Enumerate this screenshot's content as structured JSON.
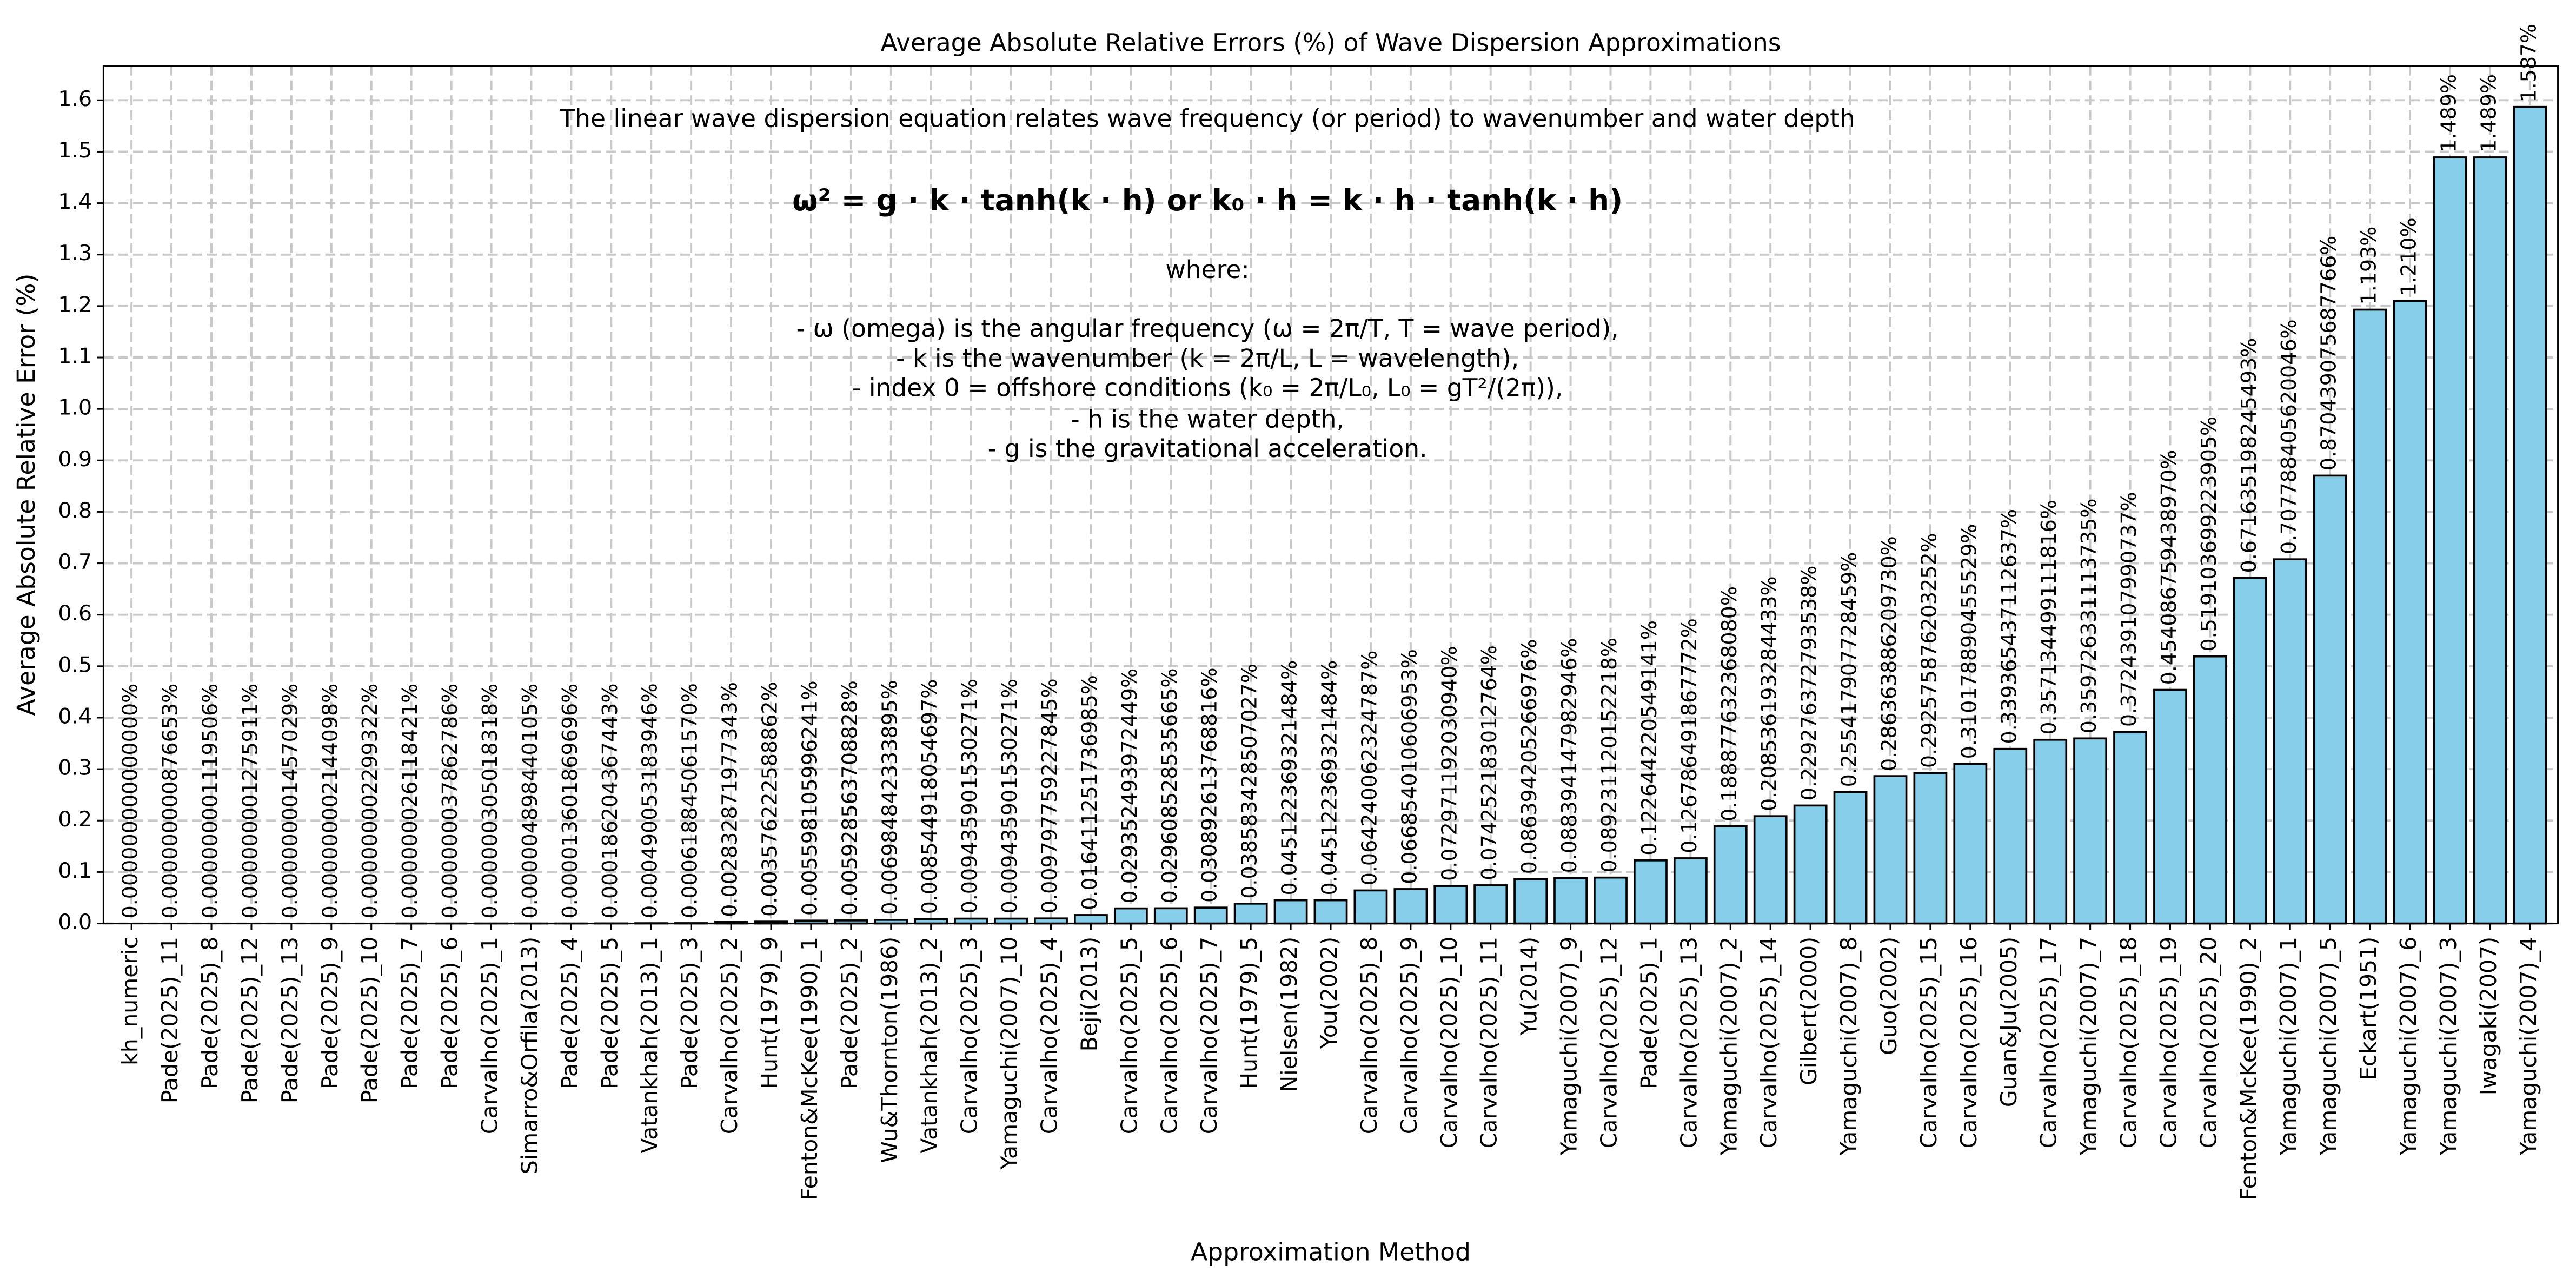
{
  "chart_data": {
    "type": "bar",
    "title": "Average Absolute Relative Errors (%) of Wave Dispersion Approximations",
    "xlabel": "Approximation Method",
    "ylabel": "Average Absolute Relative Error (%)",
    "annotations": [
      "The linear wave dispersion equation relates wave frequency (or period) to wavenumber and water depth",
      "ω² = g · k · tanh(k · h)   or   k₀ · h = k · h · tanh(k · h)",
      "where:",
      "- ω (omega) is the angular frequency (ω = 2π/T, T = wave period),",
      "- k is the wavenumber (k = 2π/L, L = wavelength),",
      "- index 0 = offshore conditions (k₀ = 2π/L₀, L₀ = gT²/(2π)),",
      "- h is the water depth,",
      "- g is the gravitational acceleration."
    ],
    "categories": [
      "kh_numeric",
      "Pade(2025)_11",
      "Pade(2025)_8",
      "Pade(2025)_12",
      "Pade(2025)_13",
      "Pade(2025)_9",
      "Pade(2025)_10",
      "Pade(2025)_7",
      "Pade(2025)_6",
      "Carvalho(2025)_1",
      "Simarro&Orfila(2013)",
      "Pade(2025)_4",
      "Pade(2025)_5",
      "Vatankhah(2013)_1",
      "Pade(2025)_3",
      "Carvalho(2025)_2",
      "Hunt(1979)_9",
      "Fenton&McKee(1990)_1",
      "Pade(2025)_2",
      "Wu&Thornton(1986)",
      "Vatankhah(2013)_2",
      "Carvalho(2025)_3",
      "Yamaguchi(2007)_10",
      "Carvalho(2025)_4",
      "Beji(2013)",
      "Carvalho(2025)_5",
      "Carvalho(2025)_6",
      "Carvalho(2025)_7",
      "Hunt(1979)_5",
      "Nielsen(1982)",
      "You(2002)",
      "Carvalho(2025)_8",
      "Carvalho(2025)_9",
      "Carvalho(2025)_10",
      "Carvalho(2025)_11",
      "Yu(2014)",
      "Yamaguchi(2007)_9",
      "Carvalho(2025)_12",
      "Pade(2025)_1",
      "Carvalho(2025)_13",
      "Yamaguchi(2007)_2",
      "Carvalho(2025)_14",
      "Gilbert(2000)",
      "Yamaguchi(2007)_8",
      "Guo(2002)",
      "Carvalho(2025)_15",
      "Carvalho(2025)_16",
      "Guan&Ju(2005)",
      "Carvalho(2025)_17",
      "Yamaguchi(2007)_7",
      "Carvalho(2025)_18",
      "Carvalho(2025)_19",
      "Carvalho(2025)_20",
      "Fenton&McKee(1990)_2",
      "Yamaguchi(2007)_1",
      "Yamaguchi(2007)_5",
      "Eckart(1951)",
      "Yamaguchi(2007)_6",
      "Yamaguchi(2007)_3",
      "Iwagaki(2007)",
      "Yamaguchi(2007)_4"
    ],
    "values": [
      0.0,
      8.76653e-10,
      1.119506e-09,
      1.275911e-09,
      1.457029e-09,
      2.144098e-09,
      2.299322e-09,
      2.6118421e-08,
      3.7862786e-08,
      3.05018318e-07,
      4.898440105e-06,
      1.3601869696e-05,
      0.000186204367443,
      0.000490053183946,
      0.00061884506157,
      0.002832871977343,
      0.003576222588862,
      0.005598105996241,
      0.005928563708828,
      0.006984842333895,
      0.008544918054697,
      0.009435901530271,
      0.009435901530271,
      0.009797759227845,
      0.016411251736985,
      0.029352493972449,
      0.029608528535665,
      0.030892613768816,
      0.038583428507027,
      0.045122369321484,
      0.045122369321484,
      0.064240062324787,
      0.066854010606953,
      0.07297119203094,
      0.074252183012764,
      0.086394205266976,
      0.088394147982946,
      0.089231120152218,
      0.122644220549141,
      0.126786491867772,
      0.18887763236808,
      0.208536193284433,
      0.229276372793538,
      0.255417907728459,
      0.28636388620973,
      0.292575876203252,
      0.310178890455529,
      0.339365437112637,
      0.357134499111816,
      0.359726331113735,
      0.372439107990737,
      0.45408675943897,
      0.519103699223905,
      0.671635198245493,
      0.707788405620046,
      0.870439075687766,
      1.193,
      1.21,
      1.489,
      1.489,
      1.587
    ],
    "value_labels": [
      "0.000000000000000%",
      "0.000000000876653%",
      "0.000000001119506%",
      "0.000000001275911%",
      "0.000000001457029%",
      "0.000000002144098%",
      "0.000000002299322%",
      "0.000000026118421%",
      "0.000000037862786%",
      "0.000000305018318%",
      "0.000004898440105%",
      "0.000013601869696%",
      "0.000186204367443%",
      "0.000490053183946%",
      "0.000618845061570%",
      "0.002832871977343%",
      "0.003576222588862%",
      "0.005598105996241%",
      "0.005928563708828%",
      "0.006984842333895%",
      "0.008544918054697%",
      "0.009435901530271%",
      "0.009435901530271%",
      "0.009797759227845%",
      "0.016411251736985%",
      "0.029352493972449%",
      "0.029608528535665%",
      "0.030892613768816%",
      "0.038583428507027%",
      "0.045122369321484%",
      "0.045122369321484%",
      "0.064240062324787%",
      "0.066854010606953%",
      "0.072971192030940%",
      "0.074252183012764%",
      "0.086394205266976%",
      "0.088394147982946%",
      "0.089231120152218%",
      "0.122644220549141%",
      "0.126786491867772%",
      "0.188877632368080%",
      "0.208536193284433%",
      "0.229276372793538%",
      "0.255417907728459%",
      "0.286363886209730%",
      "0.292575876203252%",
      "0.310178890455529%",
      "0.339365437112637%",
      "0.357134499111816%",
      "0.359726331113735%",
      "0.372439107990737%",
      "0.454086759438970%",
      "0.519103699223905%",
      "0.671635198245493%",
      "0.707788405620046%",
      "0.870439075687766%",
      "1.193%",
      "1.210%",
      "1.489%",
      "1.489%",
      "1.587%"
    ],
    "color": "#87ceeb",
    "edgecolor": "#000000",
    "label_color": "#ff0000",
    "ylim": [
      0,
      1.667
    ],
    "yticks": [
      {
        "value": 0,
        "label": "0.0"
      },
      0.1,
      0.2,
      0.3,
      0.4,
      0.5,
      0.6,
      0.7,
      0.8,
      0.9,
      {
        "value": 1,
        "label": "1.0"
      },
      1.1,
      1.2,
      1.3,
      1.4,
      1.5,
      1.6
    ],
    "grid": true
  }
}
